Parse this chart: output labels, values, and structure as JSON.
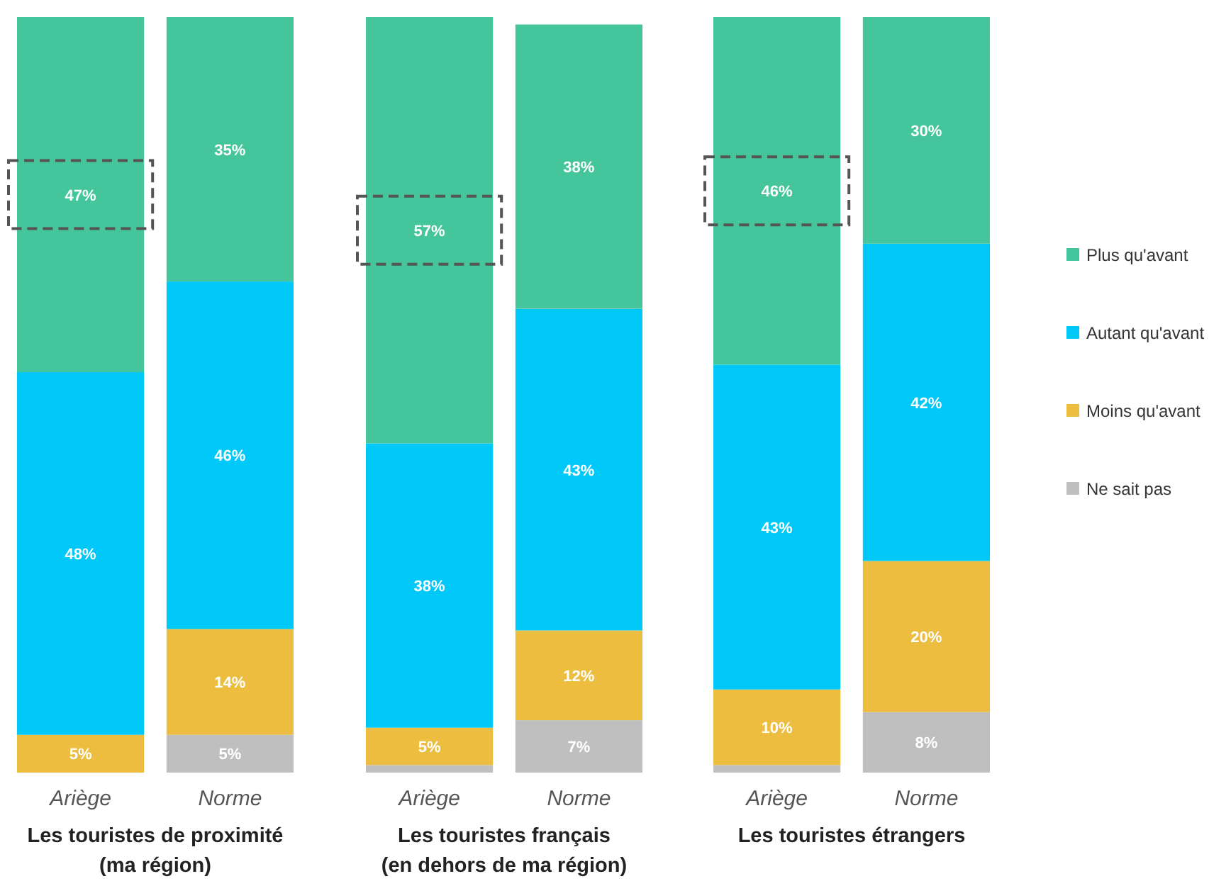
{
  "chart_data": [
    {
      "type": "bar",
      "stacked": true,
      "xlabel": "Les touristes de proximité\n(ma région)",
      "categories": [
        "Ariège",
        "Norme"
      ],
      "ylim": [
        0,
        100
      ],
      "legend": "right",
      "series": [
        {
          "name": "Ne sait pas",
          "color": "#bfbfbf",
          "values": [
            0,
            5
          ],
          "value_labels": [
            null,
            "5%"
          ]
        },
        {
          "name": "Moins qu'avant",
          "color": "#ecbd3e",
          "values": [
            5,
            14
          ],
          "value_labels": [
            "5%",
            "14%"
          ]
        },
        {
          "name": "Autant qu'avant",
          "color": "#00c8f8",
          "values": [
            48,
            46
          ],
          "value_labels": [
            "48%",
            "46%"
          ]
        },
        {
          "name": "Plus qu'avant",
          "color": "#45c59b",
          "values": [
            47,
            35
          ],
          "value_labels": [
            "47%",
            "35%"
          ]
        }
      ]
    },
    {
      "type": "bar",
      "stacked": true,
      "xlabel": "Les touristes français\n(en dehors de ma région)",
      "categories": [
        "Ariège",
        "Norme"
      ],
      "ylim": [
        0,
        101
      ],
      "series": [
        {
          "color": "#bfbfbf",
          "values": [
            1,
            7
          ],
          "value_labels": [
            null,
            "7%"
          ]
        },
        {
          "color": "#ecbd3e",
          "values": [
            5,
            12
          ],
          "value_labels": [
            "5%",
            "12%"
          ]
        },
        {
          "color": "#00c8f8",
          "values": [
            38,
            43
          ],
          "value_labels": [
            "38%",
            "43%"
          ]
        },
        {
          "color": "#45c59b",
          "values": [
            57,
            38
          ],
          "value_labels": [
            "57%",
            "38%"
          ]
        }
      ]
    },
    {
      "type": "bar",
      "stacked": true,
      "xlabel": "Les touristes étrangers",
      "categories": [
        "Ariège",
        "Norme"
      ],
      "ylim": [
        0,
        100
      ],
      "series": [
        {
          "color": "#bfbfbf",
          "values": [
            1,
            8
          ],
          "value_labels": [
            null,
            "8%"
          ]
        },
        {
          "color": "#ecbd3e",
          "values": [
            10,
            20
          ],
          "value_labels": [
            "10%",
            "20%"
          ]
        },
        {
          "color": "#00c8f8",
          "values": [
            43,
            42
          ],
          "value_labels": [
            "43%",
            "42%"
          ]
        },
        {
          "color": "#45c59b",
          "values": [
            46,
            30
          ],
          "value_labels": [
            "46%",
            "30%"
          ]
        }
      ]
    }
  ]
}
